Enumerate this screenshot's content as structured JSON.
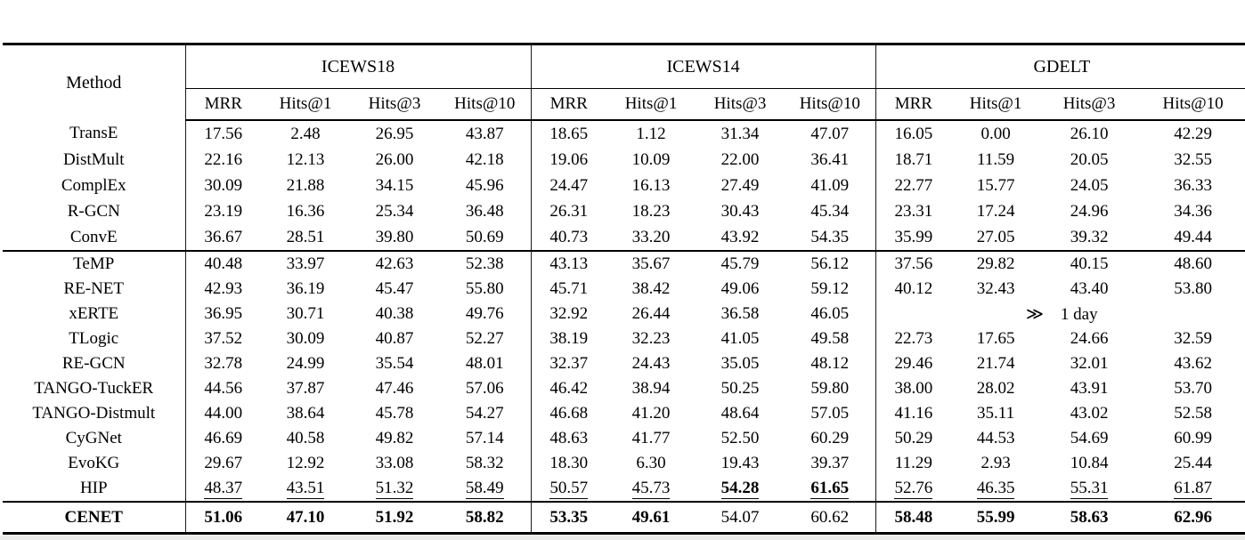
{
  "table": {
    "method_header": "Method",
    "groups": [
      {
        "name": "ICEWS18",
        "metrics": [
          "MRR",
          "Hits@1",
          "Hits@3",
          "Hits@10"
        ]
      },
      {
        "name": "ICEWS14",
        "metrics": [
          "MRR",
          "Hits@1",
          "Hits@3",
          "Hits@10"
        ]
      },
      {
        "name": "GDELT",
        "metrics": [
          "MRR",
          "Hits@1",
          "Hits@3",
          "Hits@10"
        ]
      }
    ],
    "sections": [
      {
        "name": "static-methods",
        "rows": [
          {
            "method": "TransE",
            "cells": [
              "17.56",
              "2.48",
              "26.95",
              "43.87",
              "18.65",
              "1.12",
              "31.34",
              "47.07",
              "16.05",
              "0.00",
              "26.10",
              "42.29"
            ]
          },
          {
            "method": "DistMult",
            "cells": [
              "22.16",
              "12.13",
              "26.00",
              "42.18",
              "19.06",
              "10.09",
              "22.00",
              "36.41",
              "18.71",
              "11.59",
              "20.05",
              "32.55"
            ]
          },
          {
            "method": "ComplEx",
            "cells": [
              "30.09",
              "21.88",
              "34.15",
              "45.96",
              "24.47",
              "16.13",
              "27.49",
              "41.09",
              "22.77",
              "15.77",
              "24.05",
              "36.33"
            ]
          },
          {
            "method": "R-GCN",
            "cells": [
              "23.19",
              "16.36",
              "25.34",
              "36.48",
              "26.31",
              "18.23",
              "30.43",
              "45.34",
              "23.31",
              "17.24",
              "24.96",
              "34.36"
            ]
          },
          {
            "method": "ConvE",
            "cells": [
              "36.67",
              "28.51",
              "39.80",
              "50.69",
              "40.73",
              "33.20",
              "43.92",
              "54.35",
              "35.99",
              "27.05",
              "39.32",
              "49.44"
            ]
          }
        ]
      },
      {
        "name": "temporal-methods",
        "rows": [
          {
            "method": "TeMP",
            "cells": [
              "40.48",
              "33.97",
              "42.63",
              "52.38",
              "43.13",
              "35.67",
              "45.79",
              "56.12",
              "37.56",
              "29.82",
              "40.15",
              "48.60"
            ]
          },
          {
            "method": "RE-NET",
            "cells": [
              "42.93",
              "36.19",
              "45.47",
              "55.80",
              "45.71",
              "38.42",
              "49.06",
              "59.12",
              "40.12",
              "32.43",
              "43.40",
              "53.80"
            ]
          },
          {
            "method": "xERTE",
            "cells": [
              "36.95",
              "30.71",
              "40.38",
              "49.76",
              "32.92",
              "26.44",
              "36.58",
              "46.05",
              "≫  1 day"
            ],
            "colspans": [
              1,
              1,
              1,
              1,
              1,
              1,
              1,
              1,
              4
            ]
          },
          {
            "method": "TLogic",
            "cells": [
              "37.52",
              "30.09",
              "40.87",
              "52.27",
              "38.19",
              "32.23",
              "41.05",
              "49.58",
              "22.73",
              "17.65",
              "24.66",
              "32.59"
            ]
          },
          {
            "method": "RE-GCN",
            "cells": [
              "32.78",
              "24.99",
              "35.54",
              "48.01",
              "32.37",
              "24.43",
              "35.05",
              "48.12",
              "29.46",
              "21.74",
              "32.01",
              "43.62"
            ]
          },
          {
            "method": "TANGO-TuckER",
            "cells": [
              "44.56",
              "37.87",
              "47.46",
              "57.06",
              "46.42",
              "38.94",
              "50.25",
              "59.80",
              "38.00",
              "28.02",
              "43.91",
              "53.70"
            ]
          },
          {
            "method": "TANGO-Distmult",
            "cells": [
              "44.00",
              "38.64",
              "45.78",
              "54.27",
              "46.68",
              "41.20",
              "48.64",
              "57.05",
              "41.16",
              "35.11",
              "43.02",
              "52.58"
            ]
          },
          {
            "method": "CyGNet",
            "cells": [
              "46.69",
              "40.58",
              "49.82",
              "57.14",
              "48.63",
              "41.77",
              "52.50",
              "60.29",
              "50.29",
              "44.53",
              "54.69",
              "60.99"
            ]
          },
          {
            "method": "EvoKG",
            "cells": [
              "29.67",
              "12.92",
              "33.08",
              "58.32",
              "18.30",
              "6.30",
              "19.43",
              "39.37",
              "11.29",
              "2.93",
              "10.84",
              "25.44"
            ]
          },
          {
            "method": "HIP",
            "cells": [
              "48.37",
              "43.51",
              "51.32",
              "58.49",
              "50.57",
              "45.73",
              "54.28",
              "61.65",
              "52.76",
              "46.35",
              "55.31",
              "61.87"
            ],
            "styles": [
              "u",
              "u",
              "u",
              "u",
              "u",
              "u",
              "bu",
              "bu",
              "u",
              "u",
              "u",
              "u"
            ]
          }
        ]
      },
      {
        "name": "ours",
        "rows": [
          {
            "method": "CENET",
            "method_bold": true,
            "cells": [
              "51.06",
              "47.10",
              "51.92",
              "58.82",
              "53.35",
              "49.61",
              "54.07",
              "60.62",
              "58.48",
              "55.99",
              "58.63",
              "62.96"
            ],
            "styles": [
              "b",
              "b",
              "b",
              "b",
              "b",
              "b",
              "",
              "",
              "b",
              "b",
              "b",
              "b"
            ]
          }
        ]
      }
    ]
  },
  "colors": {
    "text": "#000000",
    "rule": "#000000",
    "vertical_bar": "#1a1a1a",
    "background": "#ffffff"
  }
}
